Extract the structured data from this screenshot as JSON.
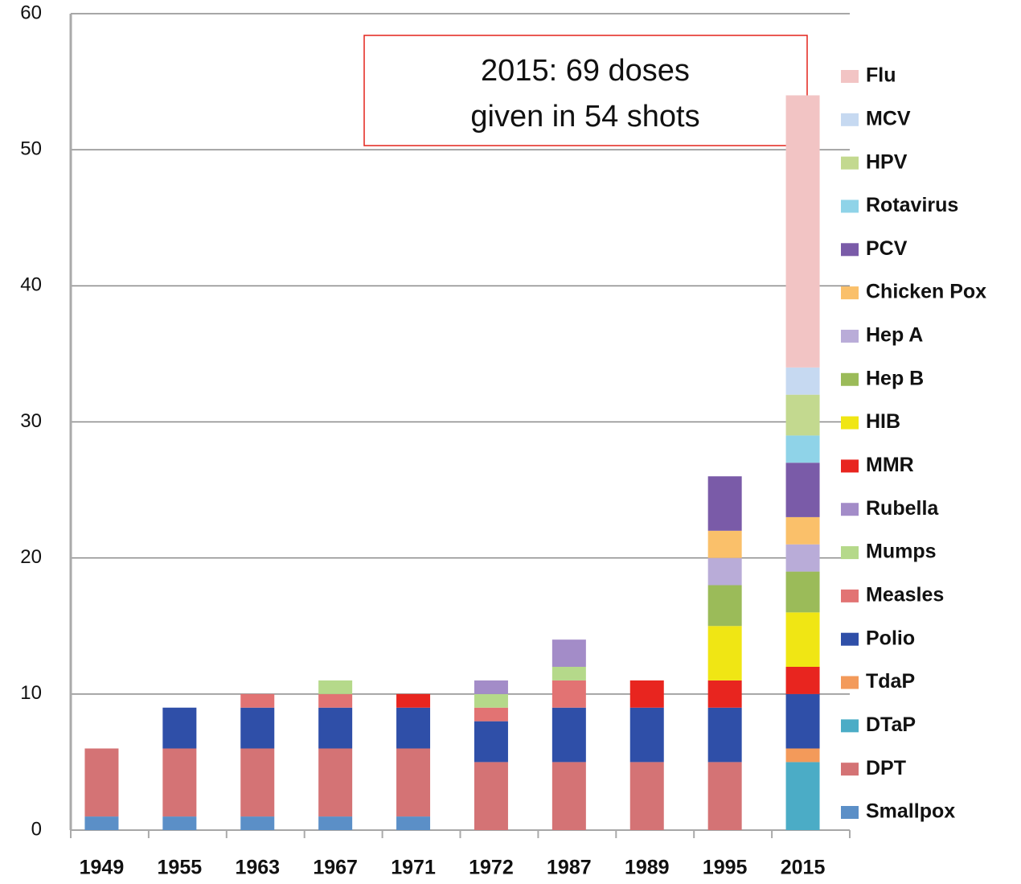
{
  "chart_data": {
    "type": "stacked_bar",
    "annotation": [
      "2015: 69 doses",
      "given in 54 shots"
    ],
    "categories": [
      "1949",
      "1955",
      "1963",
      "1967",
      "1971",
      "1972",
      "1987",
      "1989",
      "1995",
      "2015"
    ],
    "series": [
      {
        "name": "Smallpox",
        "color": "#5b8fc7",
        "values": [
          1,
          1,
          1,
          1,
          1,
          0,
          0,
          0,
          0,
          0
        ]
      },
      {
        "name": "DPT",
        "color": "#d47375",
        "values": [
          5,
          5,
          5,
          5,
          5,
          5,
          5,
          5,
          5,
          0
        ]
      },
      {
        "name": "DTaP",
        "color": "#4bacc6",
        "values": [
          0,
          0,
          0,
          0,
          0,
          0,
          0,
          0,
          0,
          5
        ]
      },
      {
        "name": "TdaP",
        "color": "#f39a5a",
        "values": [
          0,
          0,
          0,
          0,
          0,
          0,
          0,
          0,
          0,
          1
        ]
      },
      {
        "name": "Polio",
        "color": "#2f4fa8",
        "values": [
          0,
          3,
          3,
          3,
          3,
          3,
          4,
          4,
          4,
          4
        ]
      },
      {
        "name": "Measles",
        "color": "#e27373",
        "values": [
          0,
          0,
          1,
          1,
          0,
          1,
          2,
          0,
          0,
          0
        ]
      },
      {
        "name": "Mumps",
        "color": "#b5d98a",
        "values": [
          0,
          0,
          0,
          1,
          0,
          1,
          1,
          0,
          0,
          0
        ]
      },
      {
        "name": "Rubella",
        "color": "#a38cc8",
        "values": [
          0,
          0,
          0,
          0,
          0,
          1,
          2,
          0,
          0,
          0
        ]
      },
      {
        "name": "MMR",
        "color": "#e8251f",
        "values": [
          0,
          0,
          0,
          0,
          1,
          0,
          0,
          2,
          2,
          2
        ]
      },
      {
        "name": "HIB",
        "color": "#f0e614",
        "values": [
          0,
          0,
          0,
          0,
          0,
          0,
          0,
          0,
          4,
          4
        ]
      },
      {
        "name": "Hep B",
        "color": "#9bbb59",
        "values": [
          0,
          0,
          0,
          0,
          0,
          0,
          0,
          0,
          3,
          3
        ]
      },
      {
        "name": "Hep A",
        "color": "#b9acd8",
        "values": [
          0,
          0,
          0,
          0,
          0,
          0,
          0,
          0,
          2,
          2
        ]
      },
      {
        "name": "Chicken Pox",
        "color": "#fac06a",
        "values": [
          0,
          0,
          0,
          0,
          0,
          0,
          0,
          0,
          2,
          2
        ]
      },
      {
        "name": "PCV",
        "color": "#7a5ba8",
        "values": [
          0,
          0,
          0,
          0,
          0,
          0,
          0,
          0,
          4,
          4
        ]
      },
      {
        "name": "Rotavirus",
        "color": "#8fd3e8",
        "values": [
          0,
          0,
          0,
          0,
          0,
          0,
          0,
          0,
          0,
          2
        ]
      },
      {
        "name": "HPV",
        "color": "#c3d98f",
        "values": [
          0,
          0,
          0,
          0,
          0,
          0,
          0,
          0,
          0,
          3
        ]
      },
      {
        "name": "MCV",
        "color": "#c6d9f1",
        "values": [
          0,
          0,
          0,
          0,
          0,
          0,
          0,
          0,
          0,
          2
        ]
      },
      {
        "name": "Flu",
        "color": "#f2c4c4",
        "values": [
          0,
          0,
          0,
          0,
          0,
          0,
          0,
          0,
          0,
          20
        ]
      }
    ],
    "ylim": [
      0,
      60
    ],
    "yticks": [
      0,
      10,
      20,
      30,
      40,
      50,
      60
    ],
    "grid": true,
    "legend": "right"
  }
}
